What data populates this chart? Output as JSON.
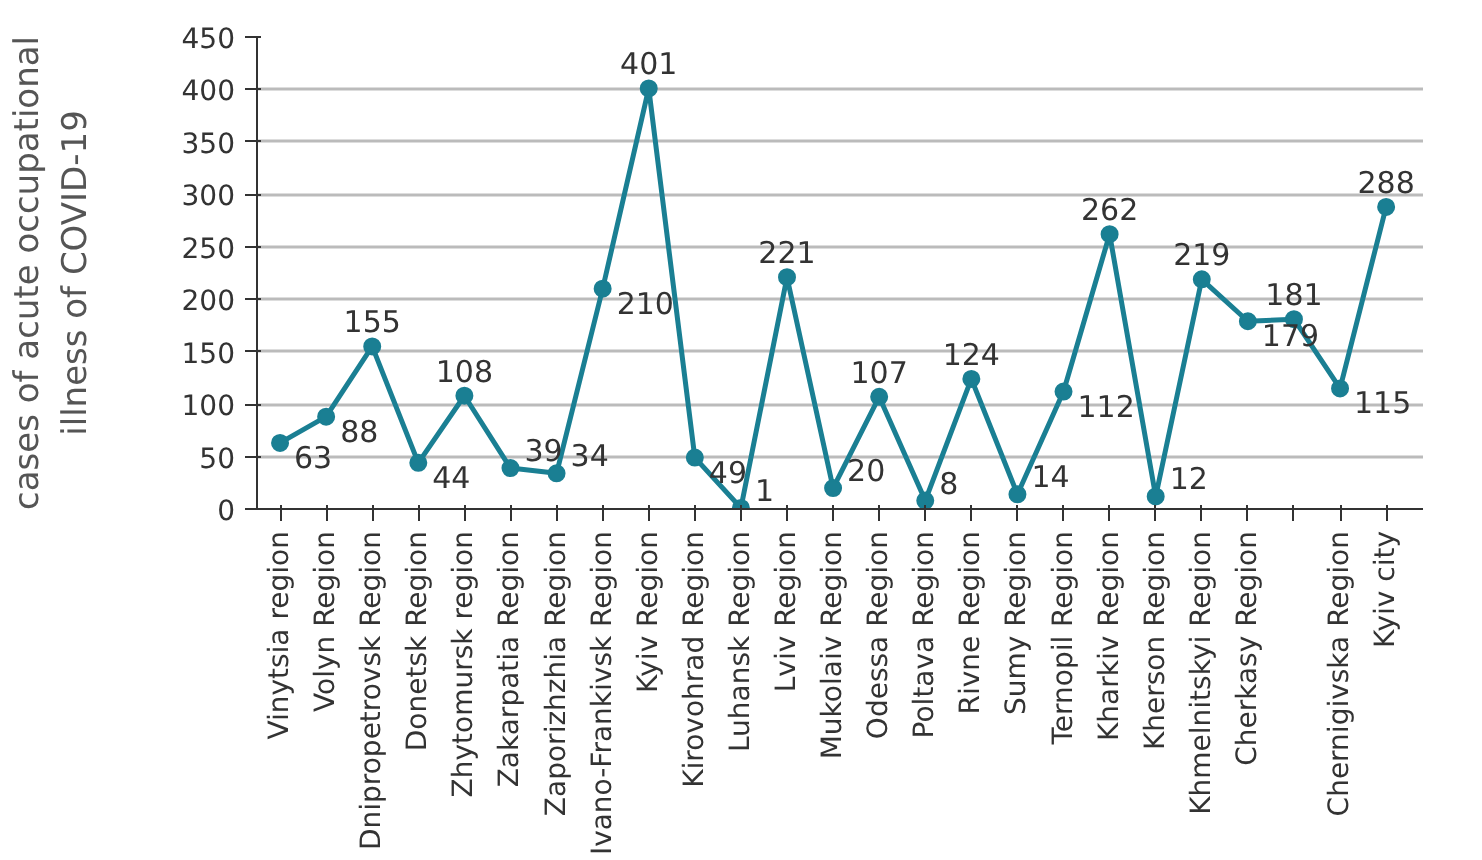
{
  "chart_data": {
    "type": "line",
    "ylabel": "cases of acute occupational\nillness of COVID-19",
    "categories": [
      "Vinytsia region",
      "Volyn Region",
      "Dnipropetrovsk Region",
      "Donetsk Region",
      "Zhytomursk region",
      "Zakarpatia Region",
      "Zaporizhzhia Region",
      "Ivano-Frankivsk Region",
      "Kyiv Region",
      "Kirovohrad Region",
      "Luhansk Region",
      "Lviv Region",
      "Mukolaiv Region",
      "Odessa Region",
      "Poltava Region",
      "Rivne Region",
      "Sumy Region",
      "Ternopil Region",
      "Kharkiv Region",
      "Kherson Region",
      "Khmelnitskyi Region",
      "Cherkasy Region",
      null,
      "Chernigivska Region",
      "Kyiv city"
    ],
    "values": [
      63,
      88,
      155,
      44,
      108,
      39,
      34,
      210,
      401,
      49,
      1,
      221,
      20,
      107,
      8,
      124,
      14,
      112,
      262,
      12,
      219,
      179,
      181,
      115,
      288
    ],
    "color": "#1a7f93",
    "marker": "circle",
    "data_labels": true,
    "grid": "y",
    "ylim": [
      0,
      450
    ],
    "yticks": [
      0,
      50,
      100,
      150,
      200,
      250,
      300,
      350,
      400,
      450
    ]
  }
}
